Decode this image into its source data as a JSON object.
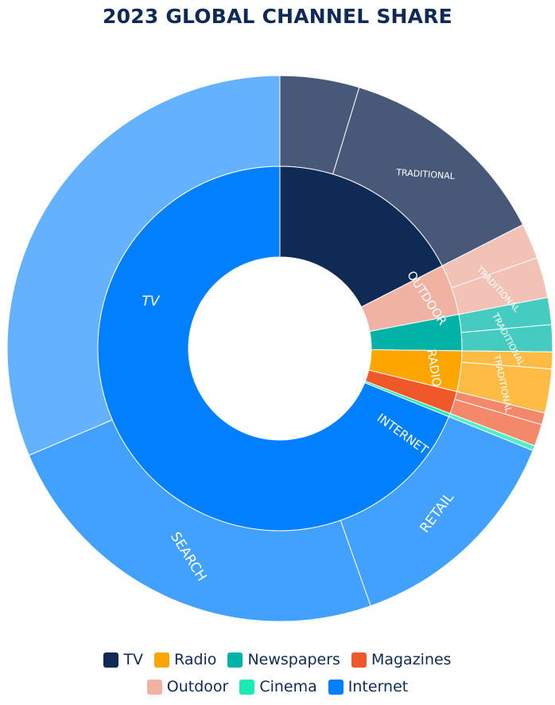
{
  "title": "2023 GLOBAL CHANNEL SHARE",
  "chart_data": {
    "type": "sunburst",
    "title": "2023 GLOBAL CHANNEL SHARE",
    "inner": [
      {
        "name": "TV",
        "label": "TV",
        "value": 17.5,
        "color": "#0e2a55"
      },
      {
        "name": "Outdoor",
        "label": "OUTDOOR",
        "value": 4.5,
        "color": "#f0b2a2"
      },
      {
        "name": "Newspapers",
        "label": "",
        "value": 3.2,
        "color": "#00b3a6"
      },
      {
        "name": "Radio",
        "label": "RADIO",
        "value": 3.6,
        "color": "#ffa500"
      },
      {
        "name": "Magazines",
        "label": "",
        "value": 2.0,
        "color": "#f0582a"
      },
      {
        "name": "Cinema",
        "label": "",
        "value": 0.3,
        "color": "#1de9b6"
      },
      {
        "name": "Internet",
        "label": "INTERNET",
        "value": 68.9,
        "color": "#0080ff"
      }
    ],
    "outer": [
      {
        "parent": "TV",
        "label": "",
        "value": 4.7,
        "color": "#485878"
      },
      {
        "parent": "TV",
        "label": "TRADITIONAL",
        "value": 12.8,
        "color": "#485878"
      },
      {
        "parent": "Outdoor",
        "label": "",
        "value": 2.1,
        "color": "#f3c2b6"
      },
      {
        "parent": "Outdoor",
        "label": "TRADITIONAL",
        "value": 2.4,
        "color": "#f3c2b6"
      },
      {
        "parent": "Newspapers",
        "label": "",
        "value": 1.6,
        "color": "#46cbc0"
      },
      {
        "parent": "Newspapers",
        "label": "TRADITIONAL",
        "value": 1.6,
        "color": "#46cbc0"
      },
      {
        "parent": "Radio",
        "label": "",
        "value": 1.0,
        "color": "#ffbc44"
      },
      {
        "parent": "Radio",
        "label": "TRADITIONAL",
        "value": 2.6,
        "color": "#ffbc44"
      },
      {
        "parent": "Magazines",
        "label": "",
        "value": 0.7,
        "color": "#f4886a"
      },
      {
        "parent": "Magazines",
        "label": "",
        "value": 1.3,
        "color": "#f4886a"
      },
      {
        "parent": "Cinema",
        "label": "",
        "value": 0.3,
        "color": "#4ef0c8"
      },
      {
        "parent": "Internet",
        "label": "RETAIL",
        "value": 13.5,
        "color": "#42a0ff"
      },
      {
        "parent": "Internet",
        "label": "SEARCH",
        "value": 24.0,
        "color": "#42a0ff"
      },
      {
        "parent": "Internet",
        "label": "",
        "value": 31.4,
        "color": "#64b2ff"
      }
    ],
    "legend": [
      {
        "name": "TV",
        "color": "#0e2a55"
      },
      {
        "name": "Radio",
        "color": "#ffa500"
      },
      {
        "name": "Newspapers",
        "color": "#00b3a6"
      },
      {
        "name": "Magazines",
        "color": "#f0582a"
      },
      {
        "name": "Outdoor",
        "color": "#f0b2a2"
      },
      {
        "name": "Cinema",
        "color": "#1de9b6"
      },
      {
        "name": "Internet",
        "color": "#0080ff"
      }
    ],
    "legend_placement": "bottom"
  }
}
